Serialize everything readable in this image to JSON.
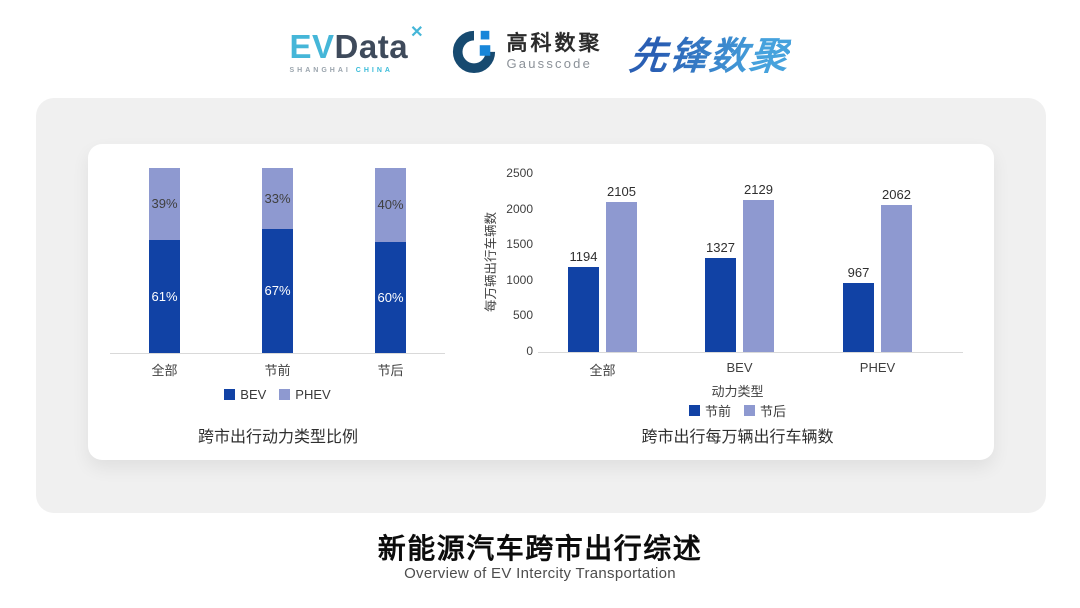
{
  "header": {
    "evdata": {
      "part1": "EV",
      "part2": "Data",
      "mark": "✕",
      "sub1": "SHANGHAI",
      "sub2": "CHINA",
      "colors": {
        "cyan": "#45b6d8",
        "slate": "#3e4a5b"
      }
    },
    "gausscode": {
      "cn": "高科数聚",
      "en": "Gausscode",
      "colors": {
        "ring": "#174a70",
        "accent": "#1886d9"
      }
    },
    "pioneer": {
      "text": "先锋数聚",
      "colors": {
        "from": "#2a5fb4",
        "to": "#46a2dd"
      }
    }
  },
  "footer": {
    "title": "新能源汽车跨市出行综述",
    "subtitle": "Overview of EV Intercity Transportation"
  },
  "colors": {
    "bar_dark": "#1142a5",
    "bar_light": "#8e99d0",
    "axis_line": "#d9d9d9",
    "tick_text": "#3f3f3f",
    "title_text": "#2f2f2f"
  },
  "chart_data": [
    {
      "type": "bar",
      "variant": "stacked-100",
      "title": "跨市出行动力类型比例",
      "categories": [
        "全部",
        "节前",
        "节后"
      ],
      "series": [
        {
          "name": "BEV",
          "values": [
            61,
            67,
            60
          ],
          "color": "#1142a5",
          "label_color": "#ffffff"
        },
        {
          "name": "PHEV",
          "values": [
            39,
            33,
            40
          ],
          "color": "#8e99d0",
          "label_color": "#404040"
        }
      ],
      "unit": "%",
      "ylim": [
        0,
        100
      ],
      "grid": false,
      "legend_position": "bottom"
    },
    {
      "type": "bar",
      "variant": "grouped",
      "title": "跨市出行每万辆出行车辆数",
      "categories": [
        "全部",
        "BEV",
        "PHEV"
      ],
      "xlabel": "动力类型",
      "ylabel": "每万辆出行车辆数",
      "ylim": [
        0,
        2500
      ],
      "yticks": [
        0,
        500,
        1000,
        1500,
        2000,
        2500
      ],
      "series": [
        {
          "name": "节前",
          "values": [
            1194,
            1327,
            967
          ],
          "color": "#1142a5"
        },
        {
          "name": "节后",
          "values": [
            2105,
            2129,
            2062
          ],
          "color": "#8e99d0"
        }
      ],
      "grid": false,
      "legend_position": "bottom"
    }
  ]
}
